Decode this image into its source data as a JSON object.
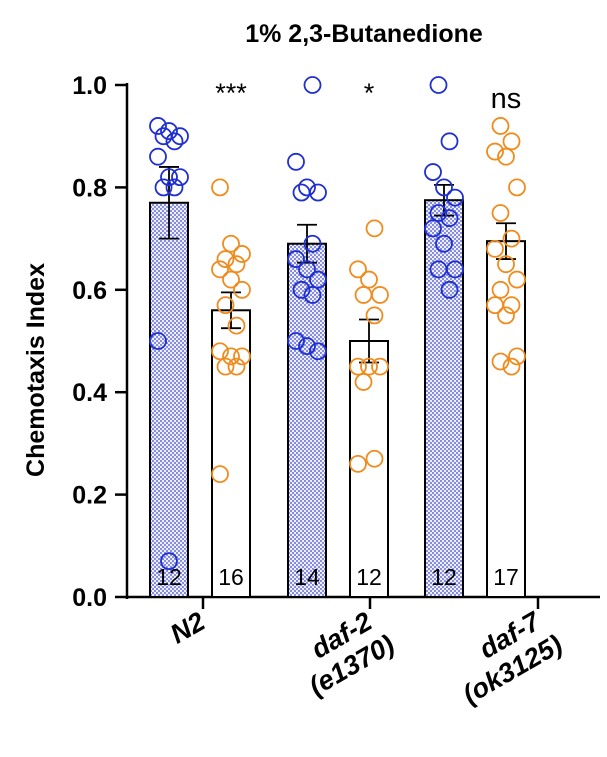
{
  "chart_data": {
    "type": "bar",
    "title": "1% 2,3-Butanedione",
    "ylabel": "Chemotaxis Index",
    "ylim": [
      0,
      1.0
    ],
    "yticks": [
      "0.0",
      "0.2",
      "0.4",
      "0.6",
      "0.8",
      "1.0"
    ],
    "groups": [
      {
        "label": "N2",
        "label_lines": [
          "N2"
        ],
        "significance": "***",
        "bars": [
          {
            "fill": "dotted-blue",
            "mean": 0.77,
            "sem": 0.07,
            "n": "12",
            "color": "#1f2fd0",
            "points": [
              0.92,
              0.91,
              0.9,
              0.9,
              0.89,
              0.86,
              0.82,
              0.82,
              0.8,
              0.8,
              0.5,
              0.07
            ]
          },
          {
            "fill": "white",
            "mean": 0.56,
            "sem": 0.035,
            "n": "16",
            "color": "#f08c1e",
            "points": [
              0.8,
              0.69,
              0.67,
              0.66,
              0.65,
              0.64,
              0.62,
              0.6,
              0.57,
              0.53,
              0.48,
              0.47,
              0.47,
              0.45,
              0.45,
              0.24
            ]
          }
        ]
      },
      {
        "label": "daf-2 (e1370)",
        "label_lines": [
          "daf-2",
          "(e1370)"
        ],
        "significance": "*",
        "bars": [
          {
            "fill": "dotted-blue",
            "mean": 0.69,
            "sem": 0.037,
            "n": "14",
            "color": "#1f2fd0",
            "points": [
              1.0,
              0.85,
              0.8,
              0.79,
              0.79,
              0.69,
              0.66,
              0.64,
              0.62,
              0.6,
              0.59,
              0.5,
              0.49,
              0.48
            ]
          },
          {
            "fill": "white",
            "mean": 0.5,
            "sem": 0.042,
            "n": "12",
            "color": "#f08c1e",
            "points": [
              0.72,
              0.64,
              0.62,
              0.59,
              0.59,
              0.55,
              0.45,
              0.45,
              0.45,
              0.42,
              0.27,
              0.26
            ]
          }
        ]
      },
      {
        "label": "daf-7 (ok3125)",
        "label_lines": [
          "daf-7",
          "(ok3125)"
        ],
        "significance": "ns",
        "bars": [
          {
            "fill": "dotted-blue",
            "mean": 0.775,
            "sem": 0.03,
            "n": "12",
            "color": "#1f2fd0",
            "points": [
              1.0,
              0.89,
              0.83,
              0.8,
              0.78,
              0.75,
              0.74,
              0.72,
              0.69,
              0.64,
              0.64,
              0.6
            ]
          },
          {
            "fill": "white",
            "mean": 0.695,
            "sem": 0.035,
            "n": "17",
            "color": "#f08c1e",
            "points": [
              0.92,
              0.89,
              0.87,
              0.86,
              0.8,
              0.75,
              0.7,
              0.68,
              0.65,
              0.62,
              0.6,
              0.57,
              0.57,
              0.55,
              0.47,
              0.46,
              0.45
            ]
          }
        ]
      }
    ]
  }
}
